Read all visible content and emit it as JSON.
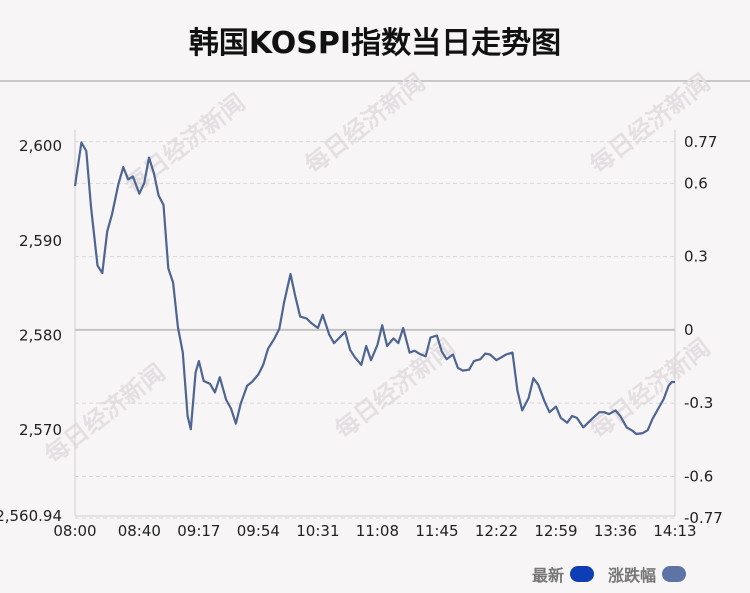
{
  "header": {
    "title": "韩国KOSPI指数当日走势图"
  },
  "watermark": "每日经济新闻",
  "colors": {
    "line": "#4e6591",
    "latest": "#0f3db3",
    "change": "#5e74a4",
    "grid": "#d8d8d8",
    "zeroline": "#c3c3c3"
  },
  "chart_data": {
    "type": "line",
    "title": "韩国KOSPI指数当日走势图",
    "x_ticks": [
      "08:00",
      "08:40",
      "09:17",
      "09:54",
      "10:31",
      "11:08",
      "11:45",
      "12:22",
      "12:59",
      "13:36",
      "14:13"
    ],
    "y_left_ticks": [
      "2,600",
      "2,590",
      "2,580",
      "2,570",
      "2,560.94"
    ],
    "y_right_ticks": [
      "0.77",
      "0.6",
      "0.3",
      "0",
      "-0.3",
      "-0.6",
      "-0.77"
    ],
    "ylim": [
      2560.94,
      2600.66
    ],
    "xlim": [
      "08:00",
      "14:13"
    ],
    "grid": true,
    "legend_position": "bottom-right",
    "series": [
      {
        "name": "最新",
        "x": [
          "08:00",
          "08:04",
          "08:07",
          "08:10",
          "08:14",
          "08:17",
          "08:20",
          "08:23",
          "08:27",
          "08:30",
          "08:33",
          "08:36",
          "08:40",
          "08:43",
          "08:46",
          "08:49",
          "08:52",
          "08:55",
          "08:58",
          "09:01",
          "09:04",
          "09:07",
          "09:10",
          "09:12",
          "09:15",
          "09:17",
          "09:20",
          "09:24",
          "09:27",
          "09:30",
          "09:34",
          "09:37",
          "09:40",
          "09:43",
          "09:47",
          "09:50",
          "09:54",
          "09:57",
          "10:00",
          "10:04",
          "10:07",
          "10:10",
          "10:14",
          "10:17",
          "10:20",
          "10:24",
          "10:27",
          "10:31",
          "10:34",
          "10:38",
          "10:41",
          "10:44",
          "10:48",
          "10:51",
          "10:54",
          "10:58",
          "11:01",
          "11:04",
          "11:08",
          "11:11",
          "11:14",
          "11:18",
          "11:21",
          "11:24",
          "11:28",
          "11:31",
          "11:34",
          "11:38",
          "11:41",
          "11:45",
          "11:48",
          "11:51",
          "11:55",
          "11:58",
          "12:01",
          "12:05",
          "12:08",
          "12:12",
          "12:15",
          "12:18",
          "12:22",
          "12:25",
          "12:28",
          "12:32",
          "12:35",
          "12:38",
          "12:42",
          "12:45",
          "12:48",
          "12:52",
          "12:55",
          "12:59",
          "13:02",
          "13:06",
          "13:09",
          "13:12",
          "13:16",
          "13:19",
          "13:22",
          "13:26",
          "13:29",
          "13:32",
          "13:36",
          "13:39",
          "13:43",
          "13:46",
          "13:49",
          "13:53",
          "13:56",
          "13:59",
          "14:03",
          "14:06",
          "14:09",
          "14:11",
          "14:13"
        ],
        "values": [
          2595.8,
          2600.4,
          2599.5,
          2593.5,
          2587.4,
          2586.6,
          2591.0,
          2592.8,
          2596.0,
          2597.8,
          2596.5,
          2596.8,
          2595.0,
          2596.1,
          2598.8,
          2597.2,
          2594.8,
          2593.8,
          2587.1,
          2585.6,
          2580.9,
          2578.2,
          2571.5,
          2570.1,
          2576.1,
          2577.3,
          2575.2,
          2574.9,
          2574.0,
          2575.6,
          2573.2,
          2572.3,
          2570.7,
          2572.8,
          2574.7,
          2575.1,
          2575.9,
          2576.9,
          2578.6,
          2579.7,
          2580.7,
          2583.5,
          2586.5,
          2584.1,
          2582.0,
          2581.8,
          2581.3,
          2580.8,
          2582.2,
          2580.1,
          2579.2,
          2579.7,
          2580.4,
          2578.5,
          2577.7,
          2576.9,
          2578.9,
          2577.4,
          2579.0,
          2581.1,
          2578.9,
          2579.7,
          2579.2,
          2580.8,
          2578.2,
          2578.4,
          2578.1,
          2577.8,
          2579.8,
          2580.0,
          2578.3,
          2577.5,
          2578.0,
          2576.6,
          2576.3,
          2576.4,
          2577.3,
          2577.5,
          2578.1,
          2578.0,
          2577.4,
          2577.7,
          2578.0,
          2578.2,
          2574.2,
          2572.1,
          2573.4,
          2575.5,
          2574.8,
          2573.0,
          2571.9,
          2572.5,
          2571.3,
          2570.8,
          2571.5,
          2571.3,
          2570.3,
          2570.8,
          2571.3,
          2571.9,
          2571.9,
          2571.7,
          2572.1,
          2571.5,
          2570.3,
          2570.0,
          2569.6,
          2569.7,
          2570.0,
          2571.2,
          2572.4,
          2573.3,
          2574.7,
          2575.1,
          2575.1
        ]
      }
    ]
  },
  "legend": [
    {
      "label": "最新",
      "color": "#0f3db3"
    },
    {
      "label": "涨跌幅",
      "color": "#5e74a4"
    }
  ]
}
